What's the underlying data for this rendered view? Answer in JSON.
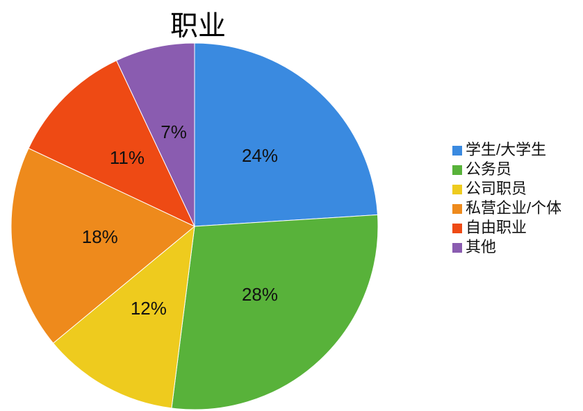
{
  "chart_data": {
    "type": "pie",
    "title": "职业",
    "categories": [
      "学生/大学生",
      "公务员",
      "公司职员",
      "私营企业/个体",
      "自由职业",
      "其他"
    ],
    "values": [
      24,
      28,
      12,
      18,
      11,
      7
    ],
    "value_labels": [
      "24%",
      "28%",
      "12%",
      "18%",
      "11%",
      "7%"
    ],
    "colors": [
      "#3a8ae0",
      "#58b23a",
      "#eecb1e",
      "#ee8a1c",
      "#ee4a14",
      "#8a5cb0"
    ],
    "legend": "right"
  }
}
